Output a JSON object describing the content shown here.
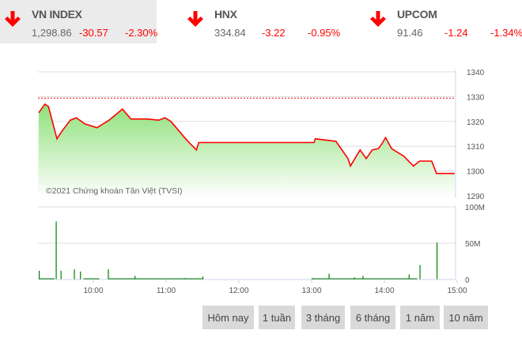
{
  "tickers": [
    {
      "name": "VN INDEX",
      "value": "1,298.86",
      "change": "-30.57",
      "percent": "-2.30%",
      "direction": "down",
      "active": true
    },
    {
      "name": "HNX",
      "value": "334.84",
      "change": "-3.22",
      "percent": "-0.95%",
      "direction": "down",
      "active": false
    },
    {
      "name": "UPCOM",
      "value": "91.46",
      "change": "-1.24",
      "percent": "-1.34%",
      "direction": "down",
      "active": false
    }
  ],
  "colors": {
    "down": "#ff0000",
    "line": "#ff0000",
    "fill": "#90e080",
    "volume": "#008000",
    "reference": "#ff0000"
  },
  "chart_data": [
    {
      "type": "area",
      "copyright": "©2021 Chứng khoán Tân Việt (TVSI)",
      "ylim": [
        1290,
        1340
      ],
      "yticks": [
        "1290",
        "1300",
        "1310",
        "1320",
        "1330",
        "1340"
      ],
      "reference": 1329.4,
      "grid": true,
      "x": [
        "09:15",
        "09:20",
        "09:23",
        "09:30",
        "09:34",
        "09:41",
        "09:46",
        "09:53",
        "10:03",
        "10:13",
        "10:24",
        "10:31",
        "10:44",
        "10:54",
        "10:59",
        "11:04",
        "11:17",
        "11:25",
        "11:27",
        "13:02",
        "13:03",
        "13:20",
        "13:30",
        "13:32",
        "13:40",
        "13:45",
        "13:50",
        "13:55",
        "13:58",
        "14:01",
        "14:06",
        "14:16",
        "14:24",
        "14:29",
        "14:39",
        "14:43",
        "14:58"
      ],
      "values": [
        1323.5,
        1327,
        1326,
        1313,
        1316,
        1320.5,
        1321.5,
        1319,
        1317.5,
        1320.5,
        1325,
        1321,
        1321,
        1320.5,
        1321.5,
        1320,
        1312.5,
        1308.5,
        1311.5,
        1311.5,
        1313,
        1312,
        1305,
        1302,
        1308.5,
        1305,
        1308.5,
        1309,
        1311,
        1313.5,
        1309,
        1306,
        1302,
        1304,
        1304,
        1299,
        1299
      ]
    },
    {
      "type": "bar",
      "ylim": [
        0,
        100
      ],
      "yticks": [
        "0",
        "50M",
        "100M"
      ],
      "xticks": [
        "10:00",
        "11:00",
        "12:00",
        "13:00",
        "14:00",
        "15:00"
      ],
      "grid": true,
      "x": [
        "09:15",
        "09:29",
        "09:33",
        "09:44",
        "09:49",
        "10:12",
        "10:34",
        "11:15",
        "11:30",
        "13:00",
        "13:14",
        "13:35",
        "13:42",
        "14:20",
        "14:29",
        "14:43"
      ],
      "values": [
        12,
        80,
        12,
        14,
        11,
        14,
        5,
        2,
        4,
        2,
        8,
        3,
        5,
        7,
        20,
        51
      ]
    }
  ],
  "buttons": [
    "Hôm nay",
    "1 tuần",
    "3 tháng",
    "6 tháng",
    "1 năm",
    "10 năm"
  ]
}
